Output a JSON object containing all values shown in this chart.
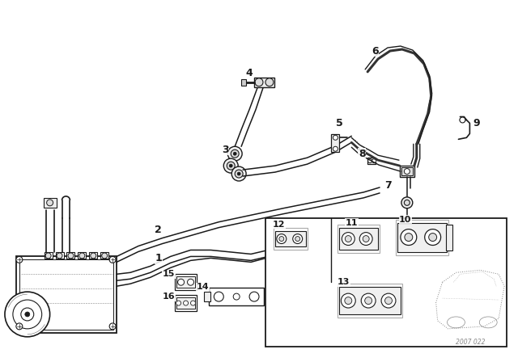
{
  "bg_color": "#ffffff",
  "line_color": "#1a1a1a",
  "label_color": "#000000",
  "watermark": "2007 022",
  "figsize": [
    6.4,
    4.48
  ],
  "dpi": 100,
  "xlim": [
    0,
    640
  ],
  "ylim": [
    0,
    448
  ]
}
